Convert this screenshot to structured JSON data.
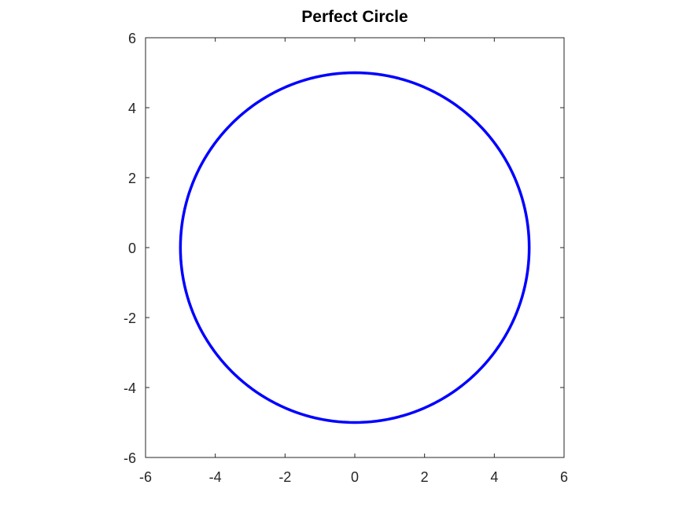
{
  "chart_data": {
    "type": "line",
    "title": "Perfect Circle",
    "xlabel": "",
    "ylabel": "",
    "xlim": [
      -6,
      6
    ],
    "ylim": [
      -6,
      6
    ],
    "xticks": [
      -6,
      -4,
      -2,
      0,
      2,
      4,
      6
    ],
    "yticks": [
      -6,
      -4,
      -2,
      0,
      2,
      4,
      6
    ],
    "xtick_labels": [
      "-6",
      "-4",
      "-2",
      "0",
      "2",
      "4",
      "6"
    ],
    "ytick_labels": [
      "-6",
      "-4",
      "-2",
      "0",
      "2",
      "4",
      "6"
    ],
    "grid": false,
    "aspect": "equal",
    "series": [
      {
        "color": "#0000ff",
        "shape": "circle",
        "center": [
          0,
          0
        ],
        "radius": 5
      }
    ]
  }
}
